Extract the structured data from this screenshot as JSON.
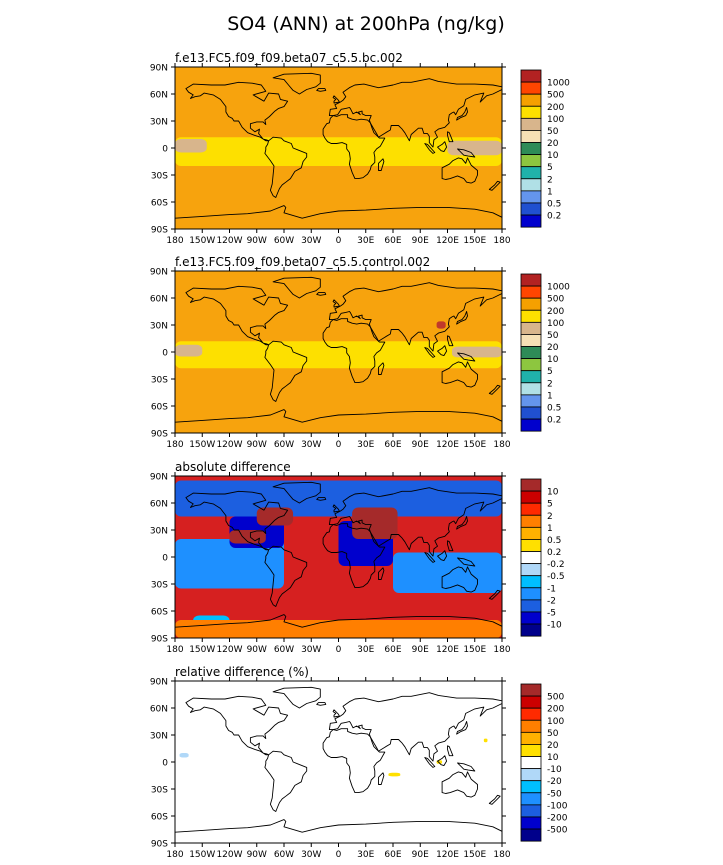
{
  "chart_data": {
    "type": "filled-contour-map",
    "title": "SO4 (ANN) at 200hPa (ng/kg)",
    "lat_ticks": [
      "90N",
      "60N",
      "30N",
      "0",
      "30S",
      "60S",
      "90S"
    ],
    "lon_ticks": [
      "180",
      "150W",
      "120W",
      "90W",
      "60W",
      "30W",
      "0",
      "30E",
      "60E",
      "90E",
      "120E",
      "150E",
      "180"
    ],
    "panels": [
      {
        "id": "bc",
        "label": "f.e13.FC5.f09_f09.beta07_c5.5.bc.002",
        "background": "#f7a30d",
        "legend": {
          "levels": [
            "1000",
            "500",
            "200",
            "100",
            "50",
            "20",
            "10",
            "5",
            "2",
            "1",
            "0.5",
            "0.2"
          ],
          "colors": [
            "#b22222",
            "#ff4500",
            "#f5a000",
            "#fde000",
            "#d8b58c",
            "#f6e0b5",
            "#2e8b57",
            "#8dc63f",
            "#20b2aa",
            "#b0e0e6",
            "#6495ed",
            "#2050d0",
            "#0000cd"
          ]
        },
        "regions": [
          {
            "color": "#fde000",
            "lon": [
              -180,
              180
            ],
            "lat": [
              -20,
              12
            ],
            "desc": "tropical band"
          },
          {
            "color": "#d8b58c",
            "lon": [
              -180,
              -145
            ],
            "lat": [
              -5,
              10
            ],
            "desc": "central Pacific patch"
          },
          {
            "color": "#d8b58c",
            "lon": [
              120,
              180
            ],
            "lat": [
              -8,
              8
            ],
            "desc": "western Pacific patch"
          }
        ]
      },
      {
        "id": "control",
        "label": "f.e13.FC5.f09_f09.beta07_c5.5.control.002",
        "background": "#f7a30d",
        "legend": {
          "levels": [
            "1000",
            "500",
            "200",
            "100",
            "50",
            "20",
            "10",
            "5",
            "2",
            "1",
            "0.5",
            "0.2"
          ],
          "colors": [
            "#b22222",
            "#ff4500",
            "#f5a000",
            "#fde000",
            "#d8b58c",
            "#f6e0b5",
            "#2e8b57",
            "#8dc63f",
            "#20b2aa",
            "#b0e0e6",
            "#6495ed",
            "#2050d0",
            "#0000cd"
          ]
        },
        "regions": [
          {
            "color": "#fde000",
            "lon": [
              -180,
              180
            ],
            "lat": [
              -18,
              12
            ],
            "desc": "tropical band"
          },
          {
            "color": "#d8b58c",
            "lon": [
              -180,
              -150
            ],
            "lat": [
              -5,
              8
            ],
            "desc": "central Pacific patch"
          },
          {
            "color": "#d8b58c",
            "lon": [
              125,
              180
            ],
            "lat": [
              -6,
              6
            ],
            "desc": "western Pacific patch"
          },
          {
            "color": "#c0392b",
            "lon": [
              108,
              118
            ],
            "lat": [
              26,
              34
            ],
            "desc": "East Asia maximum"
          }
        ]
      },
      {
        "id": "absdiff",
        "label": "absolute difference",
        "background": "#d62020",
        "legend": {
          "levels": [
            "10",
            "5",
            "2",
            "1",
            "0.5",
            "0.2",
            "-0.2",
            "-0.5",
            "-1",
            "-2",
            "-5",
            "-10"
          ],
          "colors": [
            "#a52a2a",
            "#cc0000",
            "#ff2a00",
            "#ff7f00",
            "#ffb100",
            "#ffe000",
            "#ffffff",
            "#b0d8f8",
            "#00bfff",
            "#1e90ff",
            "#1c5fe0",
            "#0000cd",
            "#00008b"
          ]
        },
        "regions": [
          {
            "color": "#1c5fe0",
            "lon": [
              -180,
              180
            ],
            "lat": [
              45,
              85
            ],
            "desc": "northern blue"
          },
          {
            "color": "#1e90ff",
            "lon": [
              -180,
              -60
            ],
            "lat": [
              -35,
              20
            ],
            "desc": "eastern Pacific blue"
          },
          {
            "color": "#0000cd",
            "lon": [
              -120,
              -60
            ],
            "lat": [
              10,
              45
            ],
            "desc": "Americas dark blue"
          },
          {
            "color": "#1e90ff",
            "lon": [
              60,
              180
            ],
            "lat": [
              -40,
              5
            ],
            "desc": "Indian Ocean blue"
          },
          {
            "color": "#0000cd",
            "lon": [
              0,
              60
            ],
            "lat": [
              -10,
              40
            ],
            "desc": "Africa dark blue"
          },
          {
            "color": "#a52a2a",
            "lon": [
              -90,
              -50
            ],
            "lat": [
              35,
              55
            ],
            "desc": "North Atlantic maxima"
          },
          {
            "color": "#a52a2a",
            "lon": [
              15,
              65
            ],
            "lat": [
              20,
              55
            ],
            "desc": "Eurasia maxima"
          },
          {
            "color": "#a52a2a",
            "lon": [
              -120,
              -80
            ],
            "lat": [
              15,
              30
            ],
            "desc": "central America maxima"
          },
          {
            "color": "#00bfff",
            "lon": [
              -160,
              -120
            ],
            "lat": [
              -80,
              -65
            ],
            "desc": "southern ocean blue"
          },
          {
            "color": "#ff7f00",
            "lon": [
              -180,
              180
            ],
            "lat": [
              -90,
              -70
            ],
            "desc": "Antarctic orange"
          }
        ]
      },
      {
        "id": "reldiff",
        "label": "relative difference (%)",
        "background": "#ffffff",
        "legend": {
          "levels": [
            "500",
            "200",
            "100",
            "50",
            "20",
            "10",
            "-10",
            "-20",
            "-50",
            "-100",
            "-200",
            "-500"
          ],
          "colors": [
            "#a52a2a",
            "#cc0000",
            "#ff2a00",
            "#ff7f00",
            "#ffb100",
            "#ffe000",
            "#ffffff",
            "#b0d8f8",
            "#00bfff",
            "#1e90ff",
            "#1c5fe0",
            "#0000cd",
            "#00008b"
          ]
        },
        "regions": [
          {
            "color": "#b0d8f8",
            "lon": [
              -175,
              -165
            ],
            "lat": [
              5,
              10
            ],
            "desc": "small blue spot"
          },
          {
            "color": "#ffe000",
            "lon": [
              55,
              68
            ],
            "lat": [
              -16,
              -12
            ],
            "desc": "Indian Ocean yellow spot"
          },
          {
            "color": "#ffe000",
            "lon": [
              108,
              114
            ],
            "lat": [
              -2,
              2
            ],
            "desc": "Indonesia yellow spot"
          },
          {
            "color": "#ffe000",
            "lon": [
              160,
              164
            ],
            "lat": [
              22,
              26
            ],
            "desc": "Pacific yellow spot"
          }
        ]
      }
    ]
  }
}
